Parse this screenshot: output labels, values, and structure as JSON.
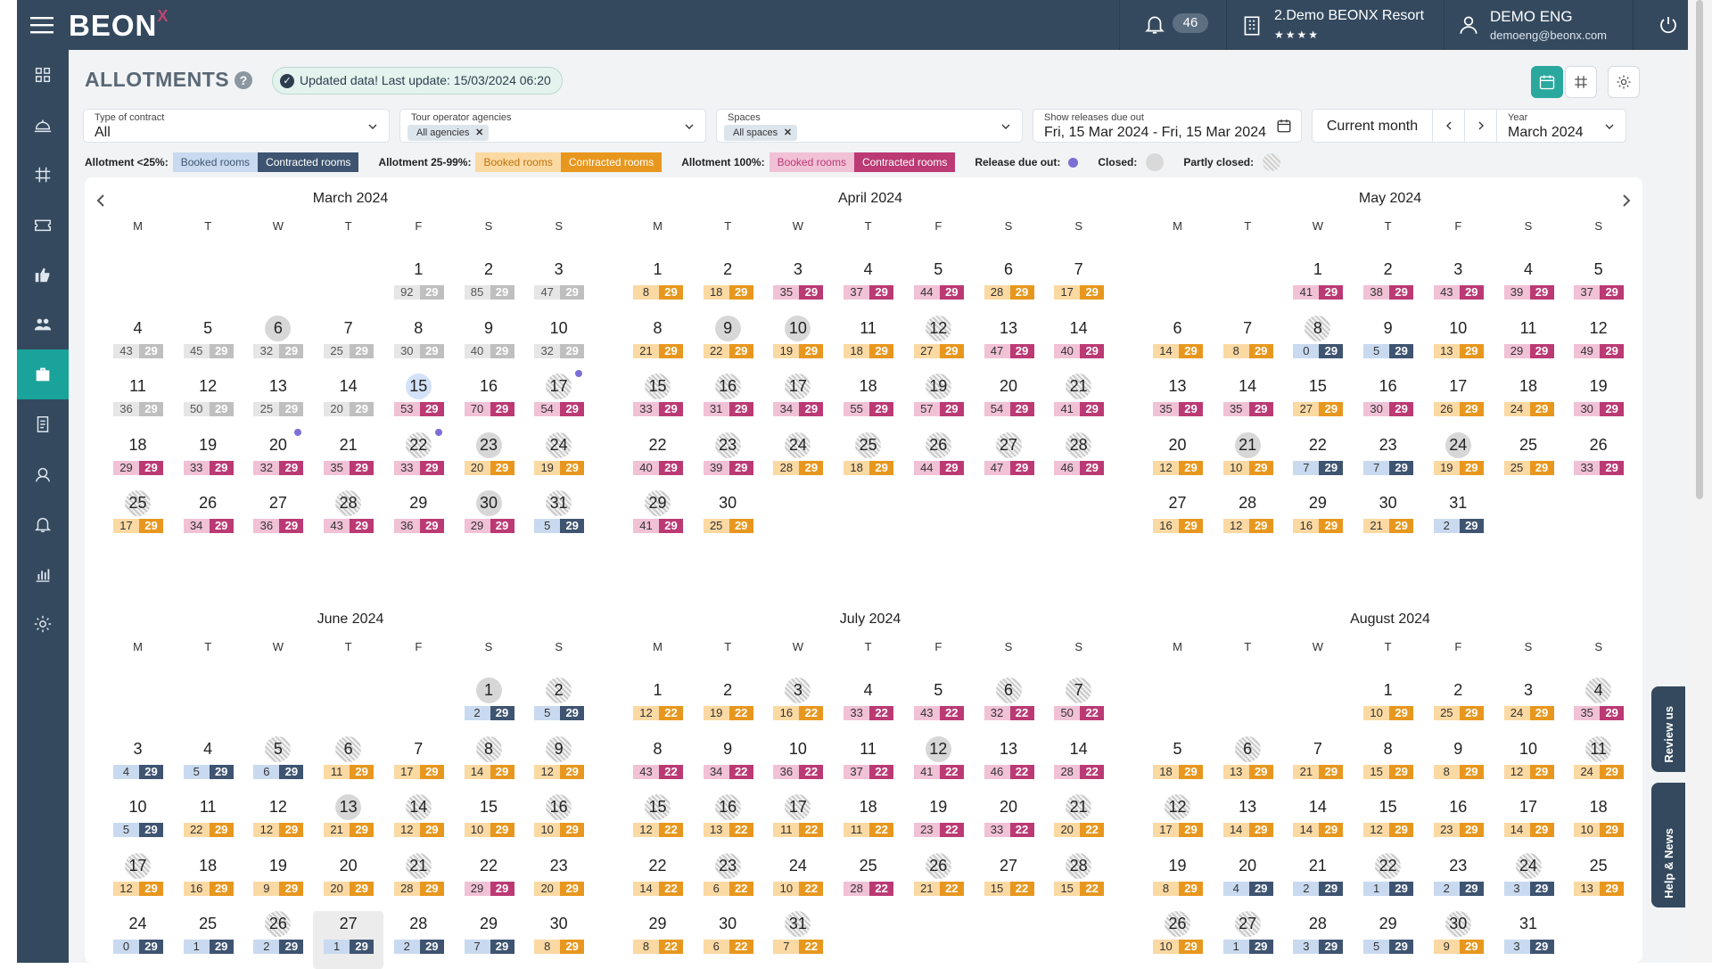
{
  "app": {
    "logo": "BEON",
    "logo_mark": "X",
    "notifications": "46",
    "hotel_name": "2.Demo BEONX Resort",
    "hotel_stars": "★★★★",
    "user_name": "DEMO ENG",
    "user_email": "demoeng@beonx.com"
  },
  "page": {
    "title": "ALLOTMENTS",
    "help": "?",
    "updated": "Updated data! Last update: 15/03/2024 06:20"
  },
  "filters": {
    "contract_label": "Type of contract",
    "contract_value": "All",
    "agencies_label": "Tour operator agencies",
    "agencies_chip": "All agencies",
    "spaces_label": "Spaces",
    "spaces_chip": "All spaces",
    "releases_label": "Show releases due out",
    "releases_value": "Fri, 15 Mar 2024 - Fri, 15 Mar 2024",
    "current_month": "Current month",
    "year_label": "Year",
    "year_value": "March 2024"
  },
  "legend": {
    "lt25": "Allotment <25%:",
    "mid": "Allotment 25-99%:",
    "full": "Allotment 100%:",
    "booked": "Booked rooms",
    "contracted": "Contracted rooms",
    "release": "Release due out:",
    "closed": "Closed:",
    "partly": "Partly closed:"
  },
  "colors": {
    "topbar": "#34495e",
    "accent": "#1aa39a",
    "gray_dark": "#bfbfbf",
    "orange_dark": "#e8971e",
    "pink_dark": "#bb3a74",
    "blue_dark": "#3e5471",
    "release_dot": "#7b6fd6"
  },
  "weekdays": [
    "M",
    "T",
    "W",
    "T",
    "F",
    "S",
    "S"
  ],
  "side_tabs": {
    "review": "Review us",
    "help": "Help & News"
  },
  "months": [
    {
      "name": "March 2024",
      "offset": 4,
      "days": [
        "92:29:g",
        "85:29:g",
        "47:29:g",
        "43:29:g",
        "45:29:g",
        "32:29:g:c",
        "25:29:g",
        "30:29:g",
        "40:29:g",
        "32:29:g",
        "36:29:g",
        "50:29:g",
        "25:29:g",
        "20:29:g",
        "53:29:p:t",
        "70:29:p",
        "54:29:p:h:r",
        "29:29:p",
        "33:29:p",
        "32:29:p:r",
        "35:29:p",
        "33:29:p:h:r",
        "20:29:o:c",
        "19:29:o:h",
        "17:29:o:h",
        "34:29:p",
        "36:29:p",
        "43:29:p:h",
        "36:29:p",
        "29:29:p:c",
        "5:29:b:h"
      ]
    },
    {
      "name": "April 2024",
      "offset": 0,
      "days": [
        "8:29:o",
        "18:29:o",
        "35:29:p",
        "37:29:p",
        "44:29:p",
        "28:29:o",
        "17:29:o",
        "21:29:o",
        "22:29:o:c",
        "19:29:o:c",
        "18:29:o",
        "27:29:o:h",
        "47:29:p",
        "40:29:p",
        "33:29:p:h",
        "31:29:p:h",
        "34:29:p:h",
        "55:29:p",
        "57:29:p:h",
        "54:29:p",
        "41:29:p:h",
        "40:29:p",
        "39:29:p:h",
        "28:29:o:h",
        "18:29:o:h",
        "44:29:p:h",
        "47:29:p:h",
        "46:29:p:h",
        "41:29:p:h",
        "25:29:o"
      ]
    },
    {
      "name": "May 2024",
      "offset": 2,
      "days": [
        "41:29:p",
        "38:29:p",
        "43:29:p",
        "39:29:p",
        "37:29:p",
        "14:29:o",
        "8:29:o",
        "0:29:b:h",
        "5:29:b",
        "13:29:o",
        "29:29:p",
        "49:29:p",
        "35:29:p",
        "35:29:p",
        "27:29:o",
        "30:29:p",
        "26:29:o",
        "24:29:o",
        "30:29:p",
        "12:29:o",
        "10:29:o:c",
        "7:29:b",
        "7:29:b",
        "19:29:o:c",
        "25:29:o",
        "33:29:p",
        "16:29:o",
        "12:29:o",
        "16:29:o",
        "21:29:o",
        "2:29:b"
      ]
    },
    {
      "name": "June 2024",
      "offset": 5,
      "days": [
        "2:29:b:c",
        "5:29:b:h",
        "4:29:b",
        "5:29:b",
        "6:29:b:h",
        "11:29:o:h",
        "17:29:o",
        "14:29:o:h",
        "12:29:o:h",
        "5:29:b",
        "22:29:o",
        "12:29:o",
        "21:29:o:c",
        "12:29:o:h",
        "10:29:o",
        "10:29:o:h",
        "12:29:o:h",
        "16:29:o",
        "9:29:o",
        "20:29:o",
        "28:29:o:h",
        "29:29:p",
        "20:29:o",
        "0:29:b",
        "1:29:b",
        "2:29:b:h",
        "1:29:b:v",
        "2:29:b",
        "7:29:b",
        "8:29:o"
      ]
    },
    {
      "name": "July 2024",
      "offset": 0,
      "days": [
        "12:22:o",
        "19:22:o",
        "16:22:o:h",
        "33:22:p",
        "43:22:p",
        "32:22:p:h",
        "50:22:p:h",
        "43:22:p",
        "34:22:p",
        "36:22:p",
        "37:22:p",
        "41:22:p:c",
        "46:22:p",
        "28:22:p",
        "12:22:o:h",
        "13:22:o:h",
        "11:22:o:h",
        "11:22:o",
        "23:22:p",
        "33:22:p",
        "20:22:o:h",
        "14:22:o",
        "6:22:o:h",
        "10:22:o",
        "28:22:p",
        "21:22:o:h",
        "15:22:o",
        "15:22:o:h",
        "8:22:o",
        "6:22:o",
        "7:22:o:h"
      ]
    },
    {
      "name": "August 2024",
      "offset": 3,
      "days": [
        "10:29:o",
        "25:29:o",
        "24:29:o",
        "35:29:p:h",
        "18:29:o",
        "13:29:o:h",
        "21:29:o",
        "15:29:o",
        "8:29:o",
        "12:29:o",
        "24:29:o:h",
        "17:29:o:h",
        "14:29:o",
        "14:29:o",
        "12:29:o",
        "23:29:o",
        "14:29:o",
        "10:29:o",
        "8:29:o",
        "4:29:b",
        "2:29:b",
        "1:29:b:h",
        "2:29:b",
        "3:29:b:h",
        "13:29:o",
        "10:29:o:h",
        "1:29:b:h",
        "3:29:b",
        "5:29:b",
        "9:29:o:h",
        "3:29:b"
      ]
    }
  ]
}
